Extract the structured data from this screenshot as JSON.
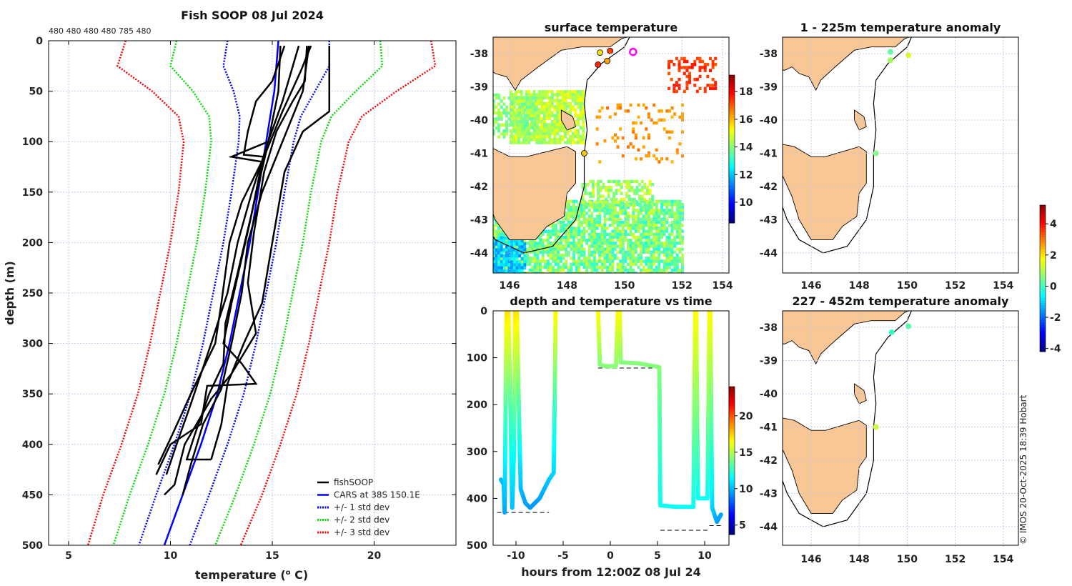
{
  "chart_data": [
    {
      "type": "line",
      "title": "Fish SOOP 08 Jul 2024",
      "top_annotation": "480 480 480 480 785 480",
      "xlabel": "temperature (",
      "xlabel_sup": "o",
      "xlabel_end": " C)",
      "ylabel": "depth (m)",
      "xlim": [
        4,
        24
      ],
      "ylim": [
        0,
        500
      ],
      "xticks": [
        5,
        10,
        15,
        20
      ],
      "yticks": [
        0,
        50,
        100,
        150,
        200,
        250,
        300,
        350,
        400,
        450,
        500
      ],
      "legend": {
        "position": "bottom-right",
        "entries": [
          "fishSOOP",
          "CARS at 38S 150.1E",
          "+/- 1 std dev",
          "+/- 2 std dev",
          "+/- 3 std dev"
        ]
      },
      "colors": {
        "fish": "#000000",
        "cars": "#0000ff",
        "sd1": "#0000ff",
        "sd2": "#00dd00",
        "sd3": "#ff0000"
      },
      "cars": {
        "depth": [
          0,
          25,
          50,
          75,
          100,
          150,
          200,
          250,
          300,
          350,
          400,
          450,
          500
        ],
        "mean": [
          15.3,
          15.2,
          15.1,
          14.9,
          14.7,
          14.3,
          13.9,
          13.4,
          12.9,
          12.3,
          11.5,
          10.6,
          9.7
        ],
        "sd": [
          2.5,
          2.6,
          2.0,
          1.5,
          1.35,
          1.3,
          1.3,
          1.3,
          1.3,
          1.3,
          1.3,
          1.3,
          1.25
        ]
      },
      "profiles": [
        [
          [
            15.4,
            5
          ],
          [
            15.3,
            50
          ],
          [
            14.8,
            100
          ],
          [
            14.0,
            150
          ],
          [
            13.3,
            200
          ],
          [
            12.8,
            250
          ],
          [
            12.0,
            300
          ],
          [
            11.0,
            360
          ],
          [
            10.3,
            400
          ],
          [
            9.8,
            430
          ]
        ],
        [
          [
            16.8,
            5
          ],
          [
            16.5,
            50
          ],
          [
            15.5,
            100
          ],
          [
            14.5,
            150
          ],
          [
            13.8,
            200
          ],
          [
            13.5,
            250
          ],
          [
            13.0,
            300
          ],
          [
            12.5,
            345
          ],
          [
            11.6,
            380
          ],
          [
            11.0,
            420
          ],
          [
            10.6,
            450
          ]
        ],
        [
          [
            17.8,
            5
          ],
          [
            17.8,
            70
          ],
          [
            16.5,
            90
          ],
          [
            15.6,
            130
          ],
          [
            15.0,
            200
          ],
          [
            14.5,
            260
          ],
          [
            13.6,
            300
          ],
          [
            12.8,
            340
          ],
          [
            12.5,
            380
          ],
          [
            12.0,
            415
          ]
        ],
        [
          [
            16.3,
            5
          ],
          [
            15.5,
            60
          ],
          [
            14.8,
            100
          ],
          [
            13.0,
            115
          ],
          [
            14.5,
            120
          ],
          [
            13.9,
            180
          ],
          [
            13.0,
            260
          ],
          [
            12.6,
            300
          ],
          [
            13.5,
            320
          ],
          [
            14.2,
            340
          ],
          [
            11.8,
            342
          ],
          [
            11.5,
            380
          ],
          [
            10.0,
            400
          ],
          [
            9.3,
            430
          ]
        ],
        [
          [
            15.6,
            5
          ],
          [
            15.0,
            40
          ],
          [
            14.2,
            60
          ],
          [
            13.8,
            90
          ],
          [
            13.6,
            113
          ],
          [
            14.6,
            115
          ],
          [
            13.5,
            160
          ],
          [
            12.9,
            200
          ],
          [
            12.5,
            260
          ],
          [
            12.2,
            300
          ],
          [
            11.0,
            350
          ],
          [
            10.1,
            390
          ],
          [
            9.4,
            420
          ]
        ],
        [
          [
            16.9,
            5
          ],
          [
            16.4,
            30
          ],
          [
            15.5,
            70
          ],
          [
            14.7,
            110
          ],
          [
            14.0,
            170
          ],
          [
            13.3,
            230
          ],
          [
            12.7,
            280
          ],
          [
            12.6,
            320
          ],
          [
            11.9,
            350
          ],
          [
            11.2,
            390
          ],
          [
            10.8,
            415
          ],
          [
            12.0,
            415
          ]
        ],
        [
          [
            16.7,
            5
          ],
          [
            16.6,
            40
          ],
          [
            16.0,
            60
          ],
          [
            15.2,
            90
          ],
          [
            14.6,
            130
          ],
          [
            14.1,
            190
          ],
          [
            13.8,
            240
          ],
          [
            14.2,
            290
          ],
          [
            13.0,
            330
          ],
          [
            12.0,
            355
          ],
          [
            10.7,
            400
          ],
          [
            10.2,
            440
          ],
          [
            9.7,
            450
          ]
        ]
      ]
    },
    {
      "type": "heatmap",
      "title": "surface temperature",
      "lon_ticks": [
        146,
        148,
        150,
        152,
        154
      ],
      "lat_ticks": [
        -38,
        -39,
        -40,
        -41,
        -42,
        -43,
        -44
      ],
      "colorbar": {
        "range": [
          8.5,
          19.2
        ],
        "ticks": [
          10,
          12,
          14,
          16,
          18
        ]
      },
      "stations": [
        {
          "lon": 149.15,
          "lat": -37.97,
          "temp": 15.5
        },
        {
          "lon": 149.5,
          "lat": -37.92,
          "temp": 17.2
        },
        {
          "lon": 149.08,
          "lat": -38.33,
          "temp": 17.5
        },
        {
          "lon": 149.4,
          "lat": -38.22,
          "temp": 16.2
        },
        {
          "lon": 148.6,
          "lat": -41.0,
          "temp": 15.8
        }
      ],
      "current_station": {
        "lon": 150.3,
        "lat": -37.95,
        "color": "#ff00ff"
      }
    },
    {
      "type": "scatter",
      "title": "depth and temperature vs time",
      "xlabel": "hours from 12:00Z 08 Jul 24",
      "xlim": [
        -12.5,
        12.5
      ],
      "ylim": [
        0,
        500
      ],
      "xticks": [
        -10,
        -5,
        0,
        5,
        10
      ],
      "yticks": [
        0,
        100,
        200,
        300,
        400,
        500
      ],
      "colorbar": {
        "range": [
          3.7,
          24
        ],
        "ticks": [
          5,
          10,
          15,
          20
        ]
      },
      "segments": [
        [
          [
            -11.6,
            360,
            10
          ],
          [
            -11.3,
            370,
            10
          ],
          [
            -11.2,
            430,
            9.5
          ],
          [
            -11.1,
            200,
            13
          ],
          [
            -11.0,
            0,
            17
          ],
          [
            -10.8,
            0,
            17
          ],
          [
            -10.6,
            200,
            13
          ],
          [
            -10.4,
            420,
            10
          ],
          [
            -10.2,
            300,
            11.5
          ],
          [
            -10.1,
            0,
            17
          ],
          [
            -9.9,
            0,
            17
          ],
          [
            -9.7,
            200,
            13
          ],
          [
            -9.5,
            380,
            10
          ],
          [
            -9,
            410,
            9.5
          ],
          [
            -8.5,
            420,
            9.3
          ],
          [
            -8,
            410,
            9.3
          ],
          [
            -7.5,
            400,
            9.5
          ],
          [
            -7,
            380,
            9.8
          ],
          [
            -6.5,
            360,
            10.2
          ],
          [
            -6,
            345,
            10.5
          ],
          [
            -5.9,
            200,
            12.5
          ],
          [
            -5.8,
            0,
            16.5
          ]
        ],
        [
          [
            -1.3,
            0,
            16.5
          ],
          [
            -1.1,
            115,
            14
          ],
          [
            -0.5,
            118,
            14
          ],
          [
            0.6,
            118,
            14
          ],
          [
            0.8,
            0,
            16.5
          ],
          [
            1.0,
            0,
            16.5
          ],
          [
            1.1,
            110,
            14
          ],
          [
            3,
            112,
            14
          ],
          [
            5.2,
            120,
            14
          ],
          [
            5.3,
            415,
            11.5
          ],
          [
            7,
            418,
            11.5
          ],
          [
            8.8,
            418,
            11.5
          ],
          [
            9,
            0,
            16.5
          ],
          [
            9.1,
            0,
            16.5
          ],
          [
            9.3,
            400,
            11.5
          ],
          [
            10.3,
            400,
            11.5
          ],
          [
            10.5,
            0,
            16.5
          ],
          [
            10.6,
            0,
            16.5
          ],
          [
            10.8,
            420,
            10.5
          ],
          [
            11.3,
            450,
            9.5
          ],
          [
            11.8,
            432,
            9.5
          ]
        ]
      ],
      "bottom_lines": [
        [
          -12,
          -6.5,
          430
        ],
        [
          -1.3,
          5.3,
          122
        ],
        [
          5.3,
          10.5,
          468
        ],
        [
          10.5,
          12,
          458
        ]
      ]
    },
    {
      "type": "scatter",
      "title": "1 - 225m temperature anomaly",
      "lon_ticks": [
        146,
        148,
        150,
        152,
        154
      ],
      "lat_ticks": [
        -38,
        -39,
        -40,
        -41,
        -42,
        -43,
        -44
      ],
      "points": [
        {
          "lon": 149.3,
          "lat": -37.95,
          "anom": 0.2
        },
        {
          "lon": 149.3,
          "lat": -38.2,
          "anom": 0.8
        },
        {
          "lon": 150.05,
          "lat": -38.05,
          "anom": 1.4
        },
        {
          "lon": 148.7,
          "lat": -41.0,
          "anom": 0.5
        }
      ]
    },
    {
      "type": "scatter",
      "title": "227 - 452m temperature anomaly",
      "lon_ticks": [
        146,
        148,
        150,
        152,
        154
      ],
      "lat_ticks": [
        -38,
        -39,
        -40,
        -41,
        -42,
        -43,
        -44
      ],
      "points": [
        {
          "lon": 149.35,
          "lat": -38.15,
          "anom": -0.2
        },
        {
          "lon": 150.05,
          "lat": -37.97,
          "anom": 0.1
        },
        {
          "lon": 148.7,
          "lat": -41.0,
          "anom": 1.2
        }
      ],
      "colorbar": {
        "range": [
          -4.2,
          5.2
        ],
        "ticks": [
          4,
          2,
          0,
          -2,
          -4
        ]
      }
    }
  ],
  "footer": {
    "credit": "© IMOS 20-Oct-2025 18:39 Hobart"
  }
}
